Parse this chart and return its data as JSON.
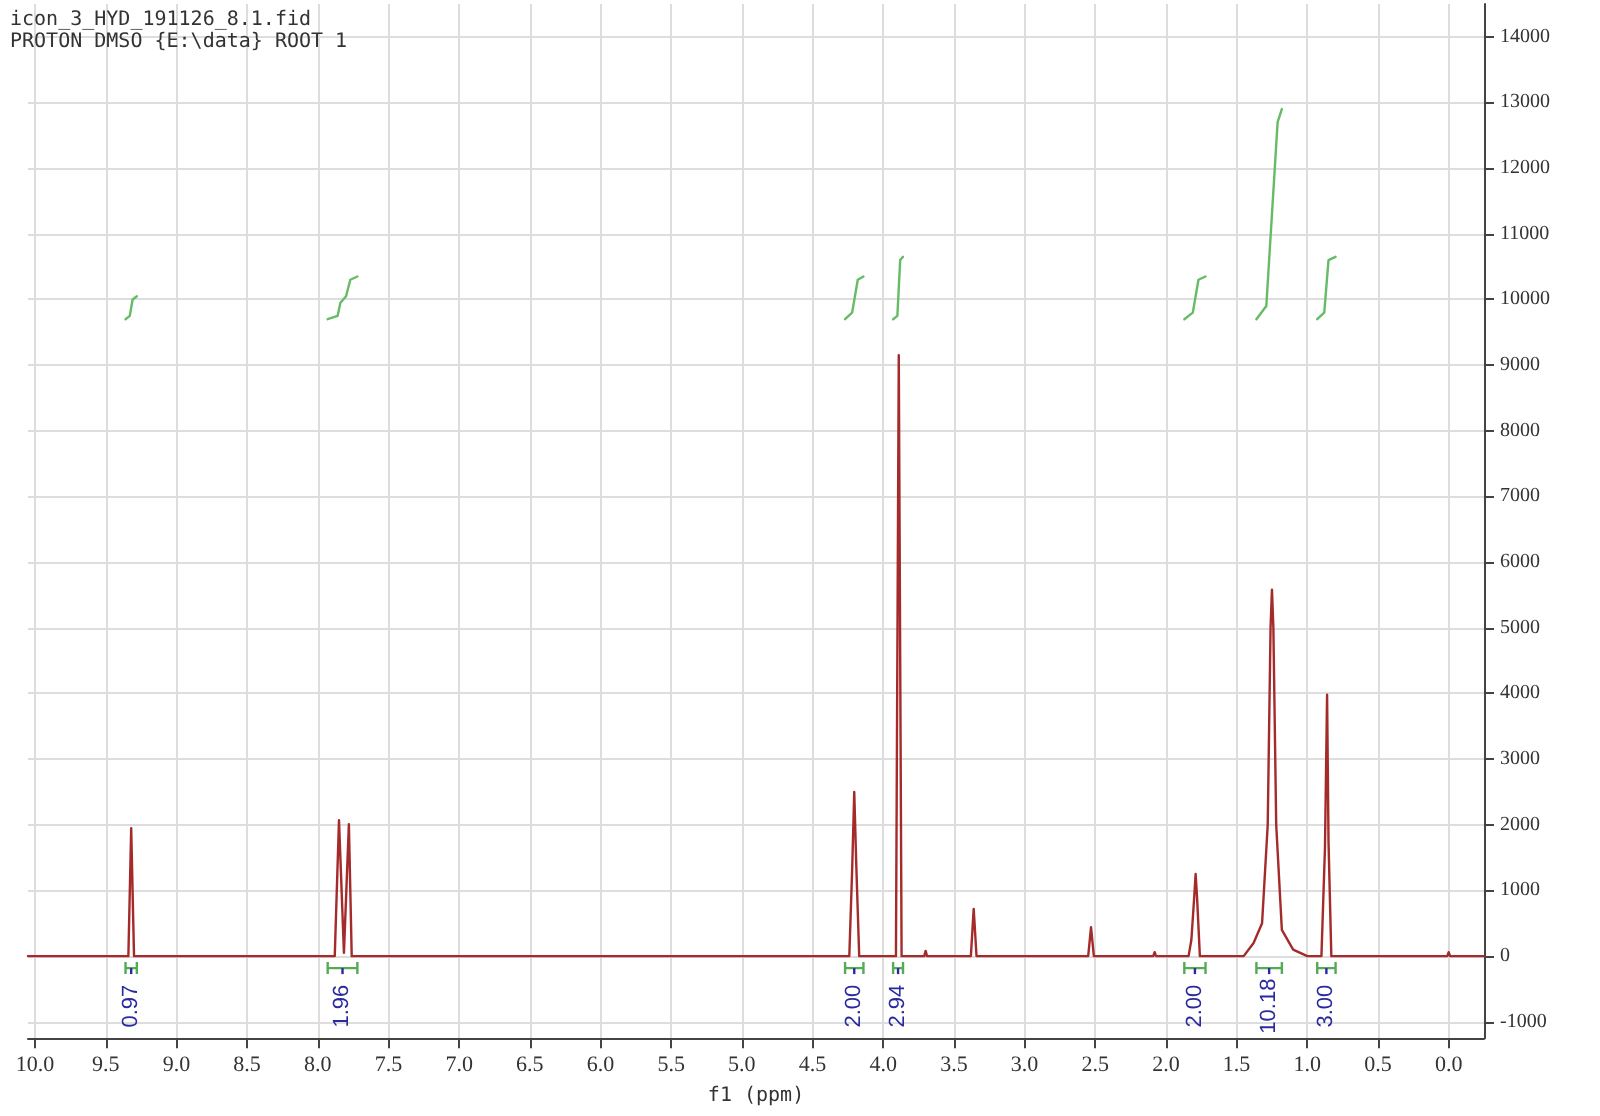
{
  "chart_data": {
    "type": "line",
    "title": "icon_3_HYD_191126_8.1.fid",
    "subtitle": "PROTON DMSO {E:\\data} ROOT 1",
    "xlabel": "f1 (ppm)",
    "xlim": [
      10.05,
      -0.25
    ],
    "xticks": [
      {
        "value": 10,
        "label": "10.0"
      },
      {
        "value": 9.5,
        "label": "9.5"
      },
      {
        "value": 9,
        "label": "9.0"
      },
      {
        "value": 8.5,
        "label": "8.5"
      },
      {
        "value": 8,
        "label": "8.0"
      },
      {
        "value": 7.5,
        "label": "7.5"
      },
      {
        "value": 7,
        "label": "7.0"
      },
      {
        "value": 6.5,
        "label": "6.5"
      },
      {
        "value": 6,
        "label": "6.0"
      },
      {
        "value": 5.5,
        "label": "5.5"
      },
      {
        "value": 5,
        "label": "5.0"
      },
      {
        "value": 4.5,
        "label": "4.5"
      },
      {
        "value": 4,
        "label": "4.0"
      },
      {
        "value": 3.5,
        "label": "3.5"
      },
      {
        "value": 3,
        "label": "3.0"
      },
      {
        "value": 2.5,
        "label": "2.5"
      },
      {
        "value": 2,
        "label": "2.0"
      },
      {
        "value": 1.5,
        "label": "1.5"
      },
      {
        "value": 1,
        "label": "1.0"
      },
      {
        "value": 0.5,
        "label": "0.5"
      },
      {
        "value": 0,
        "label": "0.0"
      }
    ],
    "ylim": [
      -1250,
      14500
    ],
    "yticks": [
      -1000,
      0,
      1000,
      2000,
      3000,
      4000,
      5000,
      6000,
      7000,
      8000,
      9000,
      10000,
      11000,
      12000,
      13000,
      14000
    ],
    "grid": true,
    "marker": "none",
    "line_style": "solid",
    "series": [
      {
        "color": "#a52a2a",
        "x": [
          10.05,
          9.34,
          9.32,
          9.3,
          7.88,
          7.85,
          7.815,
          7.78,
          7.76,
          4.24,
          4.22,
          4.205,
          4.19,
          4.17,
          3.91,
          3.89,
          3.87,
          3.71,
          3.7,
          3.69,
          3.38,
          3.36,
          3.34,
          2.55,
          2.53,
          2.51,
          2.09,
          2.08,
          2.07,
          1.84,
          1.82,
          1.8,
          1.79,
          1.78,
          1.76,
          1.45,
          1.38,
          1.32,
          1.28,
          1.26,
          1.25,
          1.24,
          1.22,
          1.18,
          1.1,
          1.0,
          0.9,
          0.875,
          0.86,
          0.85,
          0.83,
          0.01,
          0,
          -0.01,
          -0.25
        ],
        "values": [
          0,
          0,
          1950,
          0,
          0,
          2070,
          50,
          2010,
          0,
          0,
          1300,
          2500,
          1350,
          0,
          0,
          9150,
          0,
          0,
          80,
          0,
          0,
          720,
          0,
          0,
          440,
          0,
          0,
          60,
          0,
          0,
          250,
          900,
          1250,
          900,
          0,
          0,
          200,
          500,
          2000,
          5000,
          5580,
          5000,
          2000,
          400,
          100,
          0,
          0,
          1650,
          3980,
          1750,
          0,
          0,
          60,
          0,
          0
        ]
      },
      {
        "color": "#66bb66",
        "x": [
          9.36,
          9.33,
          9.31,
          9.28
        ],
        "values": [
          9700,
          9750,
          10000,
          10050
        ]
      },
      {
        "color": "#66bb66",
        "x": [
          7.93,
          7.86,
          7.84,
          7.8,
          7.77,
          7.72
        ],
        "values": [
          9700,
          9750,
          9950,
          10050,
          10300,
          10350
        ]
      },
      {
        "color": "#66bb66",
        "x": [
          4.27,
          4.22,
          4.18,
          4.14
        ],
        "values": [
          9700,
          9800,
          10300,
          10350
        ]
      },
      {
        "color": "#66bb66",
        "x": [
          3.93,
          3.9,
          3.88,
          3.86
        ],
        "values": [
          9700,
          9750,
          10600,
          10650
        ]
      },
      {
        "color": "#66bb66",
        "x": [
          1.87,
          1.81,
          1.77,
          1.72
        ],
        "values": [
          9700,
          9800,
          10300,
          10350
        ]
      },
      {
        "color": "#66bb66",
        "x": [
          1.36,
          1.29,
          1.25,
          1.21,
          1.18
        ],
        "values": [
          9700,
          9900,
          11300,
          12700,
          12900
        ]
      },
      {
        "color": "#66bb66",
        "x": [
          0.93,
          0.88,
          0.85,
          0.8
        ],
        "values": [
          9700,
          9800,
          10600,
          10650
        ]
      }
    ],
    "annotations": [
      "0.97",
      "1.96",
      "2.00",
      "2.94",
      "2.00",
      "10.18",
      "3.00"
    ]
  }
}
